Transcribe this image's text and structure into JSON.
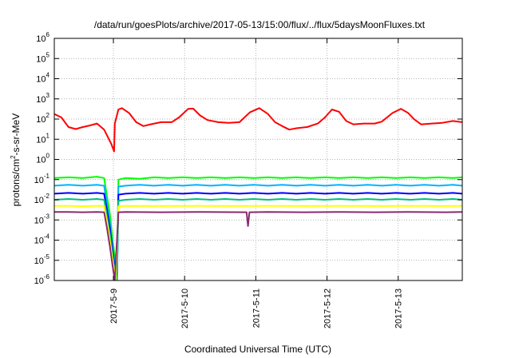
{
  "chart_data": {
    "type": "line",
    "title": "/data/run/goesPlots/archive/2017-05-13/15:00/flux/../flux/5daysMoonFluxes.txt",
    "xlabel": "Coordinated Universal Time (UTC)",
    "ylabel": "protons/cm²-s-sr-MeV",
    "ylabel_parts": {
      "pre": "protons/cm",
      "sup": "2",
      "post": "-s-sr-MeV"
    },
    "yscale": "log",
    "ylim": [
      1e-06,
      1000000.0
    ],
    "xlim_days": [
      0.0,
      5.73
    ],
    "y_ticks": [
      {
        "exp": "-6"
      },
      {
        "exp": "-5"
      },
      {
        "exp": "-4"
      },
      {
        "exp": "-3"
      },
      {
        "exp": "-2"
      },
      {
        "exp": "-1"
      },
      {
        "exp": "0"
      },
      {
        "exp": "1"
      },
      {
        "exp": "2"
      },
      {
        "exp": "3"
      },
      {
        "exp": "4"
      },
      {
        "exp": "5"
      },
      {
        "exp": "6"
      }
    ],
    "y_tick_base": "10",
    "x_ticks": [
      {
        "label": "2017-5-9",
        "x": 0.83
      },
      {
        "label": "2017-5-10",
        "x": 1.83
      },
      {
        "label": "2017-5-11",
        "x": 2.83
      },
      {
        "label": "2017-5-12",
        "x": 3.83
      },
      {
        "label": "2017-5-13",
        "x": 4.83
      }
    ],
    "grid": true,
    "legend": "none",
    "series": [
      {
        "color": "#ff0000",
        "points": [
          [
            0.0,
            180
          ],
          [
            0.1,
            120
          ],
          [
            0.2,
            40
          ],
          [
            0.3,
            32
          ],
          [
            0.4,
            40
          ],
          [
            0.5,
            48
          ],
          [
            0.6,
            60
          ],
          [
            0.7,
            30
          ],
          [
            0.8,
            6
          ],
          [
            0.84,
            2.5
          ],
          [
            0.85,
            60
          ],
          [
            0.9,
            300
          ],
          [
            0.95,
            350
          ],
          [
            1.05,
            200
          ],
          [
            1.15,
            70
          ],
          [
            1.25,
            45
          ],
          [
            1.35,
            55
          ],
          [
            1.5,
            70
          ],
          [
            1.65,
            70
          ],
          [
            1.75,
            120
          ],
          [
            1.88,
            320
          ],
          [
            1.95,
            330
          ],
          [
            2.05,
            150
          ],
          [
            2.15,
            90
          ],
          [
            2.3,
            70
          ],
          [
            2.45,
            65
          ],
          [
            2.6,
            70
          ],
          [
            2.75,
            220
          ],
          [
            2.88,
            350
          ],
          [
            3.0,
            180
          ],
          [
            3.1,
            70
          ],
          [
            3.2,
            45
          ],
          [
            3.3,
            30
          ],
          [
            3.4,
            35
          ],
          [
            3.55,
            40
          ],
          [
            3.7,
            60
          ],
          [
            3.8,
            120
          ],
          [
            3.9,
            300
          ],
          [
            4.0,
            230
          ],
          [
            4.1,
            80
          ],
          [
            4.2,
            55
          ],
          [
            4.35,
            60
          ],
          [
            4.5,
            60
          ],
          [
            4.6,
            75
          ],
          [
            4.75,
            200
          ],
          [
            4.87,
            320
          ],
          [
            4.97,
            200
          ],
          [
            5.05,
            100
          ],
          [
            5.15,
            55
          ],
          [
            5.3,
            60
          ],
          [
            5.45,
            65
          ],
          [
            5.6,
            80
          ],
          [
            5.73,
            70
          ]
        ]
      },
      {
        "color": "#00ff00",
        "points": [
          [
            0.0,
            0.12
          ],
          [
            0.2,
            0.13
          ],
          [
            0.4,
            0.12
          ],
          [
            0.6,
            0.14
          ],
          [
            0.7,
            0.12
          ],
          [
            0.74,
            0.015
          ],
          [
            0.78,
            0.002
          ],
          [
            0.82,
            0.0001
          ],
          [
            0.86,
            8e-06
          ],
          [
            0.88,
            1e-06
          ],
          [
            0.9,
            0.1
          ],
          [
            1.0,
            0.12
          ],
          [
            1.2,
            0.11
          ],
          [
            1.4,
            0.13
          ],
          [
            1.6,
            0.12
          ],
          [
            1.8,
            0.13
          ],
          [
            2.0,
            0.12
          ],
          [
            2.2,
            0.13
          ],
          [
            2.4,
            0.12
          ],
          [
            2.6,
            0.13
          ],
          [
            2.8,
            0.12
          ],
          [
            3.0,
            0.13
          ],
          [
            3.2,
            0.12
          ],
          [
            3.4,
            0.13
          ],
          [
            3.6,
            0.12
          ],
          [
            3.8,
            0.13
          ],
          [
            4.0,
            0.12
          ],
          [
            4.2,
            0.13
          ],
          [
            4.4,
            0.12
          ],
          [
            4.6,
            0.13
          ],
          [
            4.8,
            0.12
          ],
          [
            5.0,
            0.13
          ],
          [
            5.2,
            0.12
          ],
          [
            5.4,
            0.13
          ],
          [
            5.6,
            0.12
          ],
          [
            5.73,
            0.13
          ]
        ]
      },
      {
        "color": "#00b4ff",
        "points": [
          [
            0.0,
            0.05
          ],
          [
            0.2,
            0.055
          ],
          [
            0.4,
            0.05
          ],
          [
            0.6,
            0.055
          ],
          [
            0.7,
            0.05
          ],
          [
            0.74,
            0.006
          ],
          [
            0.78,
            0.0007
          ],
          [
            0.82,
            4e-05
          ],
          [
            0.86,
            3e-06
          ],
          [
            0.88,
            1e-06
          ],
          [
            0.9,
            0.045
          ],
          [
            1.0,
            0.05
          ],
          [
            1.2,
            0.055
          ],
          [
            1.4,
            0.05
          ],
          [
            1.6,
            0.055
          ],
          [
            1.8,
            0.05
          ],
          [
            2.0,
            0.055
          ],
          [
            2.2,
            0.05
          ],
          [
            2.4,
            0.055
          ],
          [
            2.6,
            0.05
          ],
          [
            2.8,
            0.055
          ],
          [
            3.0,
            0.05
          ],
          [
            3.2,
            0.055
          ],
          [
            3.4,
            0.05
          ],
          [
            3.6,
            0.055
          ],
          [
            3.8,
            0.05
          ],
          [
            4.0,
            0.055
          ],
          [
            4.2,
            0.05
          ],
          [
            4.4,
            0.055
          ],
          [
            4.6,
            0.05
          ],
          [
            4.8,
            0.055
          ],
          [
            5.0,
            0.05
          ],
          [
            5.2,
            0.055
          ],
          [
            5.4,
            0.05
          ],
          [
            5.6,
            0.055
          ],
          [
            5.73,
            0.05
          ]
        ]
      },
      {
        "color": "#0000ff",
        "points": [
          [
            0.0,
            0.02
          ],
          [
            0.2,
            0.022
          ],
          [
            0.4,
            0.02
          ],
          [
            0.6,
            0.022
          ],
          [
            0.7,
            0.02
          ],
          [
            0.74,
            0.003
          ],
          [
            0.78,
            0.0004
          ],
          [
            0.82,
            3e-05
          ],
          [
            0.86,
            2e-06
          ],
          [
            0.88,
            1e-06
          ],
          [
            0.9,
            0.018
          ],
          [
            1.0,
            0.02
          ],
          [
            1.2,
            0.022
          ],
          [
            1.4,
            0.02
          ],
          [
            1.6,
            0.022
          ],
          [
            1.8,
            0.02
          ],
          [
            2.0,
            0.022
          ],
          [
            2.2,
            0.02
          ],
          [
            2.4,
            0.022
          ],
          [
            2.6,
            0.02
          ],
          [
            2.8,
            0.022
          ],
          [
            3.0,
            0.02
          ],
          [
            3.2,
            0.022
          ],
          [
            3.4,
            0.02
          ],
          [
            3.6,
            0.022
          ],
          [
            3.8,
            0.02
          ],
          [
            4.0,
            0.022
          ],
          [
            4.2,
            0.02
          ],
          [
            4.4,
            0.022
          ],
          [
            4.6,
            0.02
          ],
          [
            4.8,
            0.022
          ],
          [
            5.0,
            0.02
          ],
          [
            5.2,
            0.022
          ],
          [
            5.4,
            0.02
          ],
          [
            5.6,
            0.022
          ],
          [
            5.73,
            0.02
          ]
        ]
      },
      {
        "color": "#00c080",
        "points": [
          [
            0.0,
            0.01
          ],
          [
            0.2,
            0.011
          ],
          [
            0.4,
            0.01
          ],
          [
            0.6,
            0.011
          ],
          [
            0.7,
            0.01
          ],
          [
            0.74,
            0.0015
          ],
          [
            0.78,
            0.0002
          ],
          [
            0.82,
            1.5e-05
          ],
          [
            0.86,
            1.5e-06
          ],
          [
            0.88,
            1e-06
          ],
          [
            0.9,
            0.009
          ],
          [
            1.0,
            0.01
          ],
          [
            1.2,
            0.011
          ],
          [
            1.4,
            0.01
          ],
          [
            1.6,
            0.011
          ],
          [
            1.8,
            0.01
          ],
          [
            2.0,
            0.011
          ],
          [
            2.2,
            0.01
          ],
          [
            2.4,
            0.011
          ],
          [
            2.6,
            0.01
          ],
          [
            2.8,
            0.011
          ],
          [
            3.0,
            0.01
          ],
          [
            3.2,
            0.011
          ],
          [
            3.4,
            0.01
          ],
          [
            3.6,
            0.011
          ],
          [
            3.8,
            0.01
          ],
          [
            4.0,
            0.011
          ],
          [
            4.2,
            0.01
          ],
          [
            4.4,
            0.011
          ],
          [
            4.6,
            0.01
          ],
          [
            4.8,
            0.011
          ],
          [
            5.0,
            0.01
          ],
          [
            5.2,
            0.011
          ],
          [
            5.4,
            0.01
          ],
          [
            5.6,
            0.011
          ],
          [
            5.73,
            0.01
          ]
        ]
      },
      {
        "color": "#ffff00",
        "points": [
          [
            0.0,
            0.005
          ],
          [
            0.2,
            0.005
          ],
          [
            0.4,
            0.0048
          ],
          [
            0.6,
            0.005
          ],
          [
            0.7,
            0.005
          ],
          [
            0.74,
            0.0008
          ],
          [
            0.78,
            0.0001
          ],
          [
            0.82,
            1e-05
          ],
          [
            0.86,
            1e-06
          ],
          [
            0.9,
            0.0048
          ],
          [
            1.0,
            0.005
          ],
          [
            1.5,
            0.0049
          ],
          [
            2.0,
            0.005
          ],
          [
            2.5,
            0.0049
          ],
          [
            3.0,
            0.005
          ],
          [
            3.5,
            0.0049
          ],
          [
            4.0,
            0.005
          ],
          [
            4.5,
            0.0049
          ],
          [
            5.0,
            0.005
          ],
          [
            5.5,
            0.0049
          ],
          [
            5.73,
            0.005
          ]
        ]
      },
      {
        "color": "#8b2a6e",
        "points": [
          [
            0.0,
            0.0025
          ],
          [
            0.2,
            0.0025
          ],
          [
            0.4,
            0.0024
          ],
          [
            0.6,
            0.0025
          ],
          [
            0.7,
            0.0024
          ],
          [
            0.74,
            0.0004
          ],
          [
            0.78,
            5e-05
          ],
          [
            0.82,
            5e-06
          ],
          [
            0.85,
            1e-06
          ],
          [
            0.9,
            0.0024
          ],
          [
            1.0,
            0.0025
          ],
          [
            1.5,
            0.0024
          ],
          [
            2.0,
            0.0025
          ],
          [
            2.7,
            0.0024
          ],
          [
            2.72,
            0.0005
          ],
          [
            2.74,
            0.0024
          ],
          [
            3.0,
            0.0025
          ],
          [
            3.5,
            0.0024
          ],
          [
            4.0,
            0.0025
          ],
          [
            4.5,
            0.0024
          ],
          [
            5.0,
            0.0025
          ],
          [
            5.5,
            0.0024
          ],
          [
            5.73,
            0.0025
          ]
        ]
      }
    ]
  }
}
